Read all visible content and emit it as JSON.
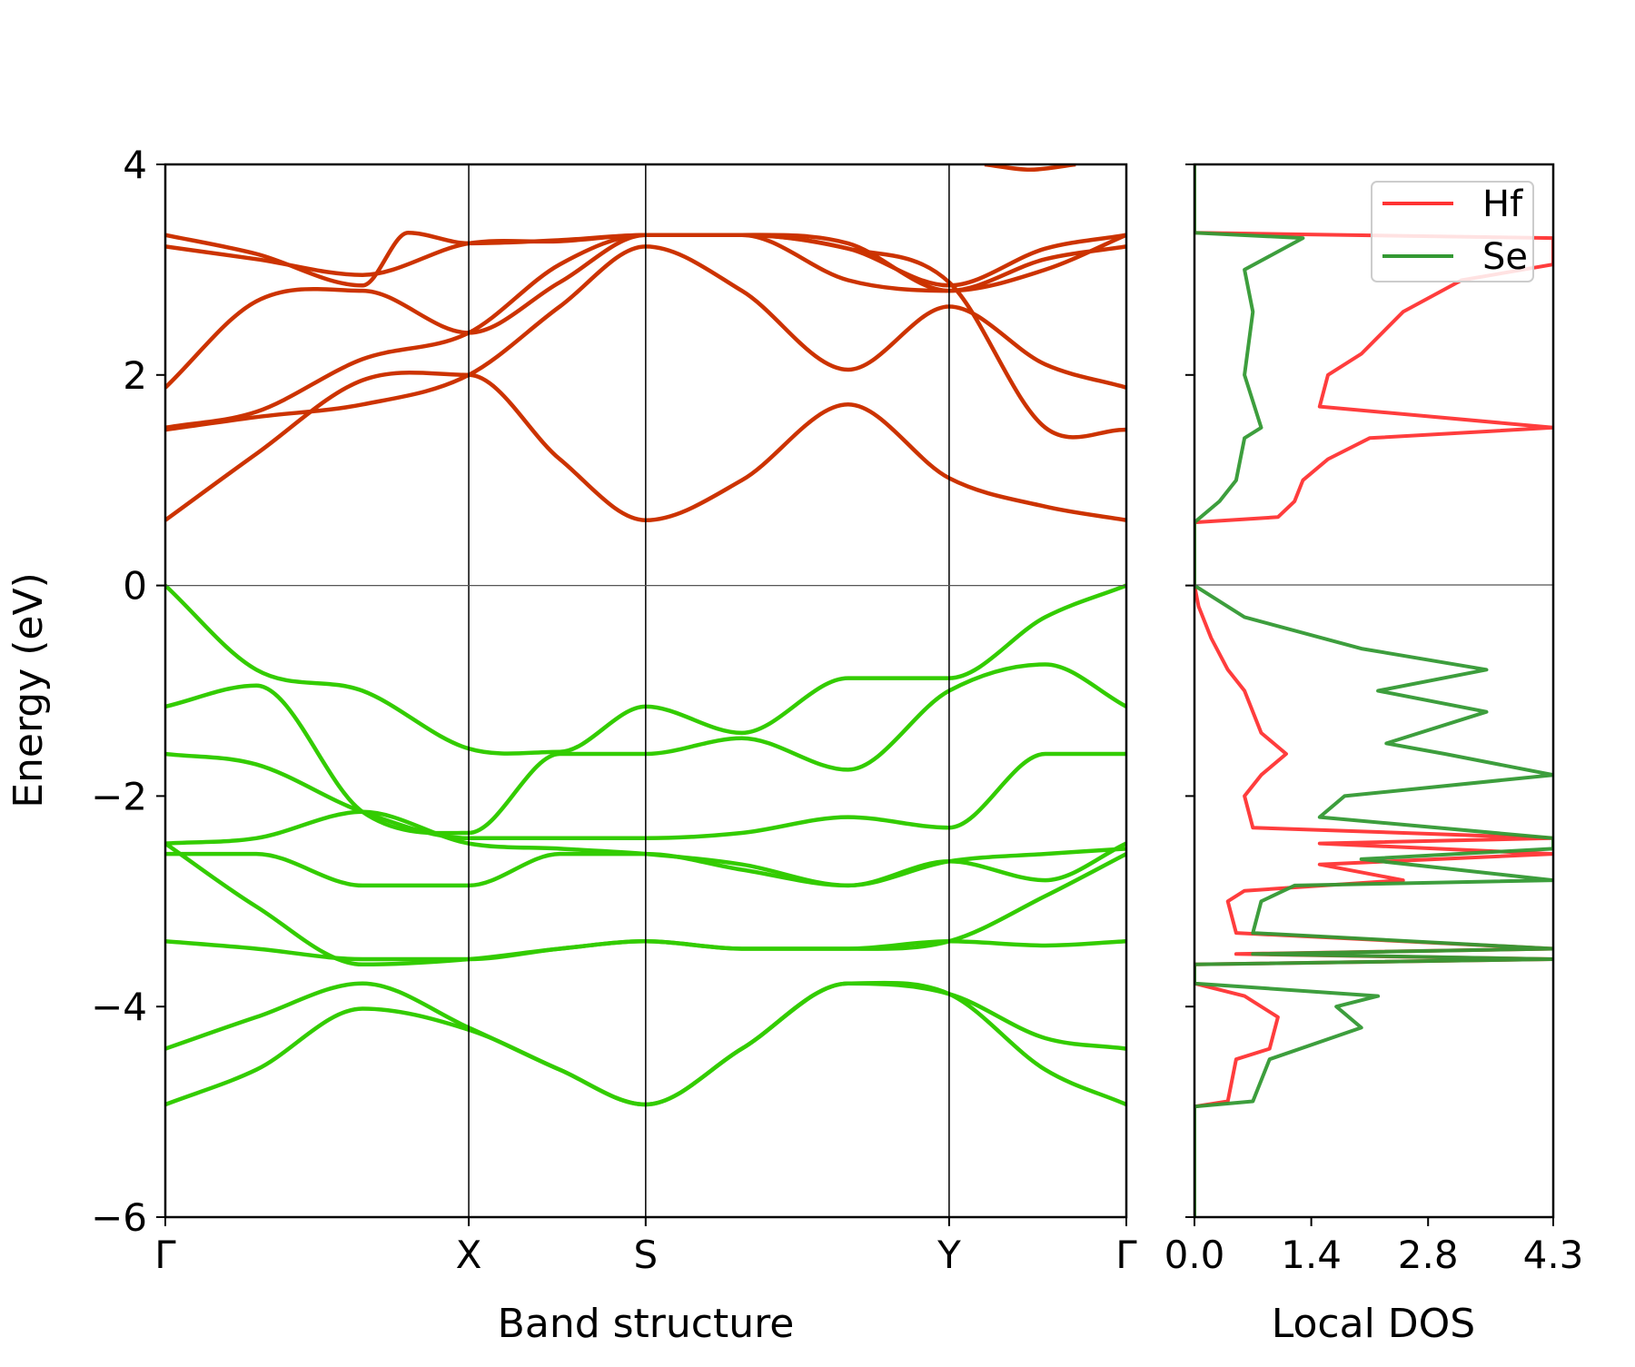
{
  "chart_data": [
    {
      "type": "line",
      "panel": "band-structure",
      "xlabel": "Band structure",
      "ylabel": "Energy (eV)",
      "ylim": [
        -6,
        4
      ],
      "yticks": [
        4,
        2,
        0,
        -2,
        -4,
        -6
      ],
      "ytick_labels": [
        "4",
        "2",
        "0",
        "−2",
        "−4",
        "−6"
      ],
      "kpoint_labels": [
        "Γ",
        "X",
        "S",
        "Y",
        "Γ"
      ],
      "kpoint_positions": [
        0,
        1,
        1.583,
        2.583,
        3.167
      ],
      "fermi_level": 0,
      "conduction_color": "#cc3300",
      "valence_color": "#33cc00",
      "bands": [
        {
          "name": "cb1",
          "kind": "conduction",
          "k": [
            0,
            0.3,
            0.65,
            1,
            1.3,
            1.583,
            1.9,
            2.25,
            2.583,
            2.9,
            3.167
          ],
          "e": [
            0.62,
            1.25,
            1.95,
            2.0,
            1.2,
            0.62,
            1.0,
            1.72,
            1.02,
            0.75,
            0.62
          ]
        },
        {
          "name": "cb2",
          "kind": "conduction",
          "k": [
            0,
            0.3,
            0.65,
            1,
            1.3,
            1.583,
            1.9,
            2.25,
            2.583,
            2.9,
            3.167
          ],
          "e": [
            1.48,
            1.6,
            1.72,
            2.0,
            2.65,
            3.22,
            2.8,
            2.05,
            2.65,
            2.1,
            1.88
          ]
        },
        {
          "name": "cb3",
          "kind": "conduction",
          "k": [
            0,
            0.3,
            0.65,
            1,
            1.3,
            1.583,
            1.9,
            2.25,
            2.583,
            2.9,
            3.167
          ],
          "e": [
            1.5,
            1.65,
            2.15,
            2.4,
            3.05,
            3.33,
            3.33,
            3.2,
            2.88,
            1.5,
            1.48
          ]
        },
        {
          "name": "cb4",
          "kind": "conduction",
          "k": [
            0,
            0.3,
            0.65,
            1,
            1.3,
            1.583,
            1.9,
            2.25,
            2.583,
            2.9,
            3.167
          ],
          "e": [
            1.88,
            2.7,
            2.8,
            2.4,
            2.88,
            3.33,
            3.33,
            2.9,
            2.8,
            3.1,
            3.22
          ]
        },
        {
          "name": "cb5",
          "kind": "conduction",
          "k": [
            0,
            0.3,
            0.65,
            1,
            1.3,
            1.583,
            1.9,
            2.25,
            2.583,
            2.9,
            3.167
          ],
          "e": [
            3.22,
            3.1,
            2.95,
            3.25,
            3.27,
            3.33,
            3.33,
            3.25,
            2.8,
            3.0,
            3.33
          ]
        },
        {
          "name": "cb6",
          "kind": "conduction",
          "k": [
            0,
            0.3,
            0.65,
            0.8,
            1,
            1.3,
            1.583,
            1.9,
            2.25,
            2.583,
            2.9,
            3.167
          ],
          "e": [
            3.33,
            3.15,
            2.85,
            3.35,
            3.25,
            3.28,
            3.33,
            3.33,
            3.2,
            2.85,
            3.2,
            3.33
          ]
        },
        {
          "name": "cb7",
          "kind": "conduction",
          "k": [
            2.7,
            2.85,
            3.0
          ],
          "e": [
            4.0,
            3.95,
            4.0
          ]
        },
        {
          "name": "vb1",
          "kind": "valence",
          "k": [
            0,
            0.3,
            0.65,
            1,
            1.3,
            1.583,
            1.9,
            2.25,
            2.583,
            2.9,
            3.167
          ],
          "e": [
            0.0,
            -0.8,
            -1.0,
            -1.55,
            -1.58,
            -1.15,
            -1.4,
            -0.88,
            -0.88,
            -0.3,
            0.0
          ]
        },
        {
          "name": "vb2",
          "kind": "valence",
          "k": [
            0,
            0.3,
            0.65,
            1,
            1.3,
            1.583,
            1.9,
            2.25,
            2.583,
            2.9,
            3.167
          ],
          "e": [
            -1.15,
            -0.95,
            -2.15,
            -2.35,
            -1.6,
            -1.6,
            -1.45,
            -1.75,
            -1.0,
            -0.75,
            -1.15
          ]
        },
        {
          "name": "vb3",
          "kind": "valence",
          "k": [
            0,
            0.3,
            0.65,
            1,
            1.3,
            1.583,
            1.9,
            2.25,
            2.583,
            2.9,
            3.167
          ],
          "e": [
            -1.6,
            -1.7,
            -2.15,
            -2.4,
            -2.4,
            -2.4,
            -2.35,
            -2.2,
            -2.3,
            -1.6,
            -1.6
          ]
        },
        {
          "name": "vb4",
          "kind": "valence",
          "k": [
            0,
            0.3,
            0.65,
            1,
            1.3,
            1.583,
            1.9,
            2.25,
            2.583,
            2.9,
            3.167
          ],
          "e": [
            -2.45,
            -2.4,
            -2.15,
            -2.45,
            -2.5,
            -2.55,
            -2.65,
            -2.85,
            -2.62,
            -2.8,
            -2.45
          ]
        },
        {
          "name": "vb5",
          "kind": "valence",
          "k": [
            0,
            0.3,
            0.65,
            1,
            1.3,
            1.583,
            1.9,
            2.25,
            2.583,
            2.9,
            3.167
          ],
          "e": [
            -2.55,
            -2.55,
            -2.85,
            -2.85,
            -2.55,
            -2.55,
            -2.7,
            -2.85,
            -2.62,
            -2.55,
            -2.5
          ]
        },
        {
          "name": "vb6",
          "kind": "valence",
          "k": [
            0,
            0.3,
            0.65,
            1,
            1.3,
            1.583,
            1.9,
            2.25,
            2.583,
            2.9,
            3.167
          ],
          "e": [
            -2.45,
            -3.05,
            -3.6,
            -3.55,
            -3.45,
            -3.38,
            -3.45,
            -3.45,
            -3.38,
            -2.95,
            -2.55
          ]
        },
        {
          "name": "vb7",
          "kind": "valence",
          "k": [
            0,
            0.3,
            0.65,
            1,
            1.3,
            1.583,
            1.9,
            2.25,
            2.583,
            2.9,
            3.167
          ],
          "e": [
            -3.38,
            -3.45,
            -3.55,
            -3.55,
            -3.45,
            -3.38,
            -3.45,
            -3.45,
            -3.38,
            -3.42,
            -3.38
          ]
        },
        {
          "name": "vb8",
          "kind": "valence",
          "k": [
            0,
            0.3,
            0.65,
            1,
            1.3,
            1.583,
            1.9,
            2.25,
            2.583,
            2.9,
            3.167
          ],
          "e": [
            -4.4,
            -4.1,
            -3.78,
            -4.2,
            -4.6,
            -4.93,
            -4.4,
            -3.78,
            -3.88,
            -4.3,
            -4.4
          ]
        },
        {
          "name": "vb9",
          "kind": "valence",
          "k": [
            0,
            0.3,
            0.65,
            1,
            1.3,
            1.583,
            1.9,
            2.25,
            2.583,
            2.9,
            3.167
          ],
          "e": [
            -4.93,
            -4.6,
            -4.02,
            -4.22,
            -4.6,
            -4.93,
            -4.4,
            -3.78,
            -3.88,
            -4.6,
            -4.93
          ]
        }
      ]
    },
    {
      "type": "line",
      "panel": "local-dos",
      "xlabel": "Local DOS",
      "xlim": [
        0,
        4.3
      ],
      "xticks": [
        0.0,
        1.4,
        2.8,
        4.3
      ],
      "xtick_labels": [
        "0.0",
        "1.4",
        "2.8",
        "4.3"
      ],
      "ylim": [
        -6,
        4
      ],
      "legend": {
        "location": "top-right",
        "entries": [
          "Hf",
          "Se"
        ]
      },
      "series": [
        {
          "name": "Hf",
          "color": "#ff3333",
          "energy": [
            -6.0,
            -4.95,
            -4.9,
            -4.5,
            -4.4,
            -4.1,
            -3.9,
            -3.78,
            -3.6,
            -3.55,
            -3.5,
            -3.45,
            -3.3,
            -3.0,
            -2.9,
            -2.8,
            -2.65,
            -2.55,
            -2.45,
            -2.4,
            -2.3,
            -2.0,
            -1.8,
            -1.6,
            -1.4,
            -1.0,
            -0.8,
            -0.5,
            -0.2,
            0.0,
            0.0,
            0.6,
            0.65,
            0.8,
            1.0,
            1.2,
            1.4,
            1.5,
            1.7,
            2.0,
            2.2,
            2.6,
            2.9,
            3.05,
            3.3,
            3.35,
            3.4,
            4.0
          ],
          "dos": [
            0.0,
            0.0,
            0.4,
            0.5,
            0.9,
            1.0,
            0.6,
            0.0,
            0.0,
            4.3,
            0.5,
            4.3,
            0.5,
            0.4,
            0.6,
            2.5,
            1.5,
            4.3,
            1.5,
            4.3,
            0.7,
            0.6,
            0.8,
            1.1,
            0.8,
            0.6,
            0.4,
            0.2,
            0.05,
            0.0,
            0.0,
            0.0,
            1.0,
            1.2,
            1.3,
            1.6,
            2.1,
            4.3,
            1.5,
            1.6,
            2.0,
            2.5,
            3.2,
            4.3,
            4.3,
            0.0,
            0.0,
            0.0
          ]
        },
        {
          "name": "Se",
          "color": "#339933",
          "energy": [
            -6.0,
            -4.95,
            -4.9,
            -4.5,
            -4.2,
            -4.0,
            -3.9,
            -3.78,
            -3.6,
            -3.55,
            -3.5,
            -3.45,
            -3.3,
            -3.0,
            -2.85,
            -2.8,
            -2.6,
            -2.5,
            -2.4,
            -2.2,
            -2.0,
            -1.8,
            -1.6,
            -1.5,
            -1.2,
            -1.0,
            -0.8,
            -0.6,
            -0.3,
            0.0,
            0.0,
            0.6,
            0.8,
            1.0,
            1.4,
            1.5,
            2.0,
            2.6,
            3.0,
            3.3,
            3.35,
            3.4,
            4.0
          ],
          "dos": [
            0.0,
            0.0,
            0.7,
            0.9,
            2.0,
            1.7,
            2.2,
            0.0,
            0.0,
            4.3,
            0.7,
            4.3,
            0.7,
            0.8,
            1.2,
            4.3,
            2.0,
            4.3,
            4.3,
            1.5,
            1.8,
            4.3,
            3.0,
            2.3,
            3.5,
            2.2,
            3.5,
            2.0,
            0.6,
            0.0,
            0.0,
            0.0,
            0.3,
            0.5,
            0.6,
            0.8,
            0.6,
            0.7,
            0.6,
            1.3,
            0.0,
            0.0,
            0.0
          ]
        }
      ]
    }
  ]
}
